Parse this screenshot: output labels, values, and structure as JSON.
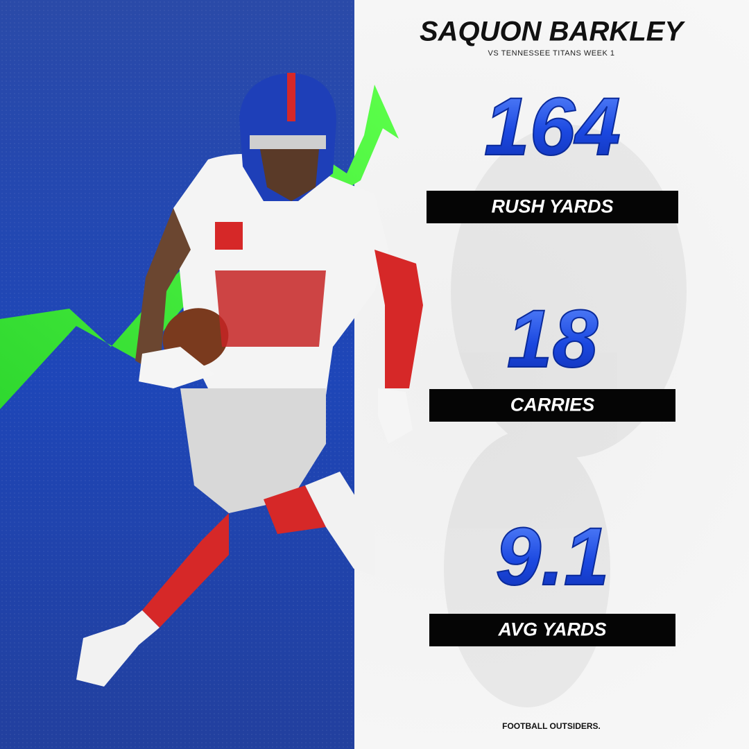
{
  "header": {
    "title": "SAQUON BARKLEY",
    "subtitle": "VS TENNESSEE TITANS WEEK 1"
  },
  "stats": [
    {
      "value": 164,
      "label": "RUSH YARDS"
    },
    {
      "value": 18,
      "label": "CARRIES"
    },
    {
      "value": 9.1,
      "label": "AVG YARDS"
    }
  ],
  "footer": {
    "brand": "FOOTBALL OUTSIDERS."
  }
}
